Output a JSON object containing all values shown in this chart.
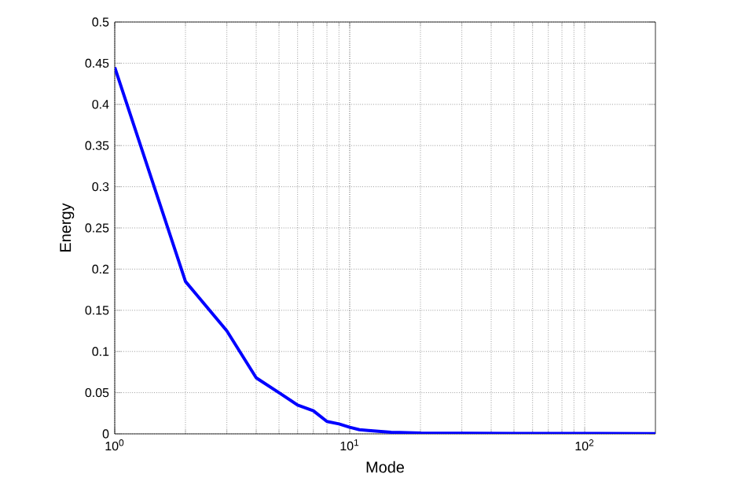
{
  "chart_data": {
    "type": "line",
    "xlabel": "Mode",
    "ylabel": "Energy",
    "x": [
      1,
      2,
      3,
      4,
      5,
      6,
      7,
      8,
      9,
      10,
      11,
      12,
      15,
      20,
      50,
      200
    ],
    "series": [
      {
        "color": "#0000ff",
        "values": [
          0.445,
          0.185,
          0.125,
          0.068,
          0.05,
          0.035,
          0.028,
          0.015,
          0.012,
          0.008,
          0.005,
          0.004,
          0.002,
          0.001,
          0.0005,
          0.0003
        ]
      }
    ],
    "xlim": [
      1,
      200
    ],
    "ylim": [
      0,
      0.5
    ],
    "xticks": [
      {
        "value": 1,
        "label": "10$^{0}$"
      },
      {
        "value": 10,
        "label": "10$^{1}$"
      },
      {
        "value": 100,
        "label": "10$^{2}$"
      }
    ],
    "yticks": [
      0,
      0.05,
      0.1,
      0.15,
      0.2,
      0.25,
      0.3,
      0.35,
      0.4,
      0.45,
      0.5
    ],
    "log": "x",
    "grid": true,
    "line_style": "solid"
  }
}
